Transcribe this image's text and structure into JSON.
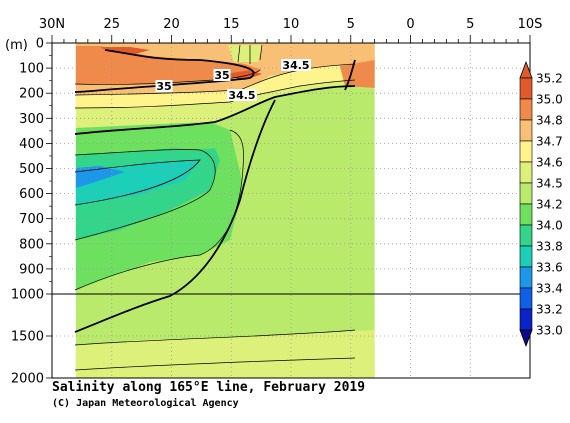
{
  "chart_data": {
    "type": "heatmap",
    "title": "Salinity along 165°E line, February 2019",
    "credit": "(C) Japan Meteorological Agency",
    "y_unit_label": "(m)",
    "x_ticks": [
      {
        "value": 30,
        "label": "30N"
      },
      {
        "value": 25,
        "label": "25"
      },
      {
        "value": 20,
        "label": "20"
      },
      {
        "value": 15,
        "label": "15"
      },
      {
        "value": 10,
        "label": "10"
      },
      {
        "value": 5,
        "label": "5"
      },
      {
        "value": 0,
        "label": "0"
      },
      {
        "value": -5,
        "label": "5"
      },
      {
        "value": -10,
        "label": "10S"
      }
    ],
    "x_range": [
      30,
      -10
    ],
    "data_x_range": [
      28,
      3
    ],
    "y_ticks": [
      0,
      100,
      200,
      300,
      400,
      500,
      600,
      700,
      800,
      900,
      1000,
      1500,
      2000
    ],
    "y_break": 1000,
    "grid": true,
    "colorbar": {
      "levels": [
        35.2,
        35.0,
        34.8,
        34.7,
        34.6,
        34.5,
        34.2,
        34.0,
        33.8,
        33.6,
        33.4,
        33.2,
        33.0
      ],
      "colors": [
        "#e05a2b",
        "#f08a4b",
        "#f8c074",
        "#fff48c",
        "#ddf07a",
        "#b9ea6c",
        "#6ee060",
        "#33d58a",
        "#1ccfb9",
        "#1d97e8",
        "#1060e6",
        "#0b24c9"
      ]
    },
    "contour_labels": [
      "35",
      "35",
      "34.5",
      "34.5"
    ]
  }
}
